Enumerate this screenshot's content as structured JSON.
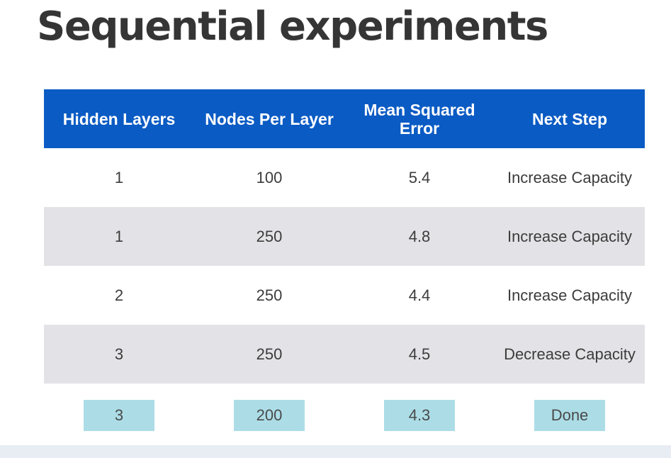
{
  "title": "Sequential experiments",
  "table": {
    "headers": [
      "Hidden Layers",
      "Nodes Per Layer",
      "Mean Squared Error",
      "Next Step"
    ],
    "rows": [
      [
        "1",
        "100",
        "5.4",
        "Increase Capacity"
      ],
      [
        "1",
        "250",
        "4.8",
        "Increase Capacity"
      ],
      [
        "2",
        "250",
        "4.4",
        "Increase Capacity"
      ],
      [
        "3",
        "250",
        "4.5",
        "Decrease Capacity"
      ]
    ],
    "final_row": [
      "3",
      "200",
      "4.3",
      "Done"
    ]
  },
  "colors": {
    "title": "#353535",
    "header_background": "#0a5bc4",
    "header_text": "#ffffff",
    "shaded_row": "#e3e2e6",
    "highlight_chip": "#acdde7"
  }
}
